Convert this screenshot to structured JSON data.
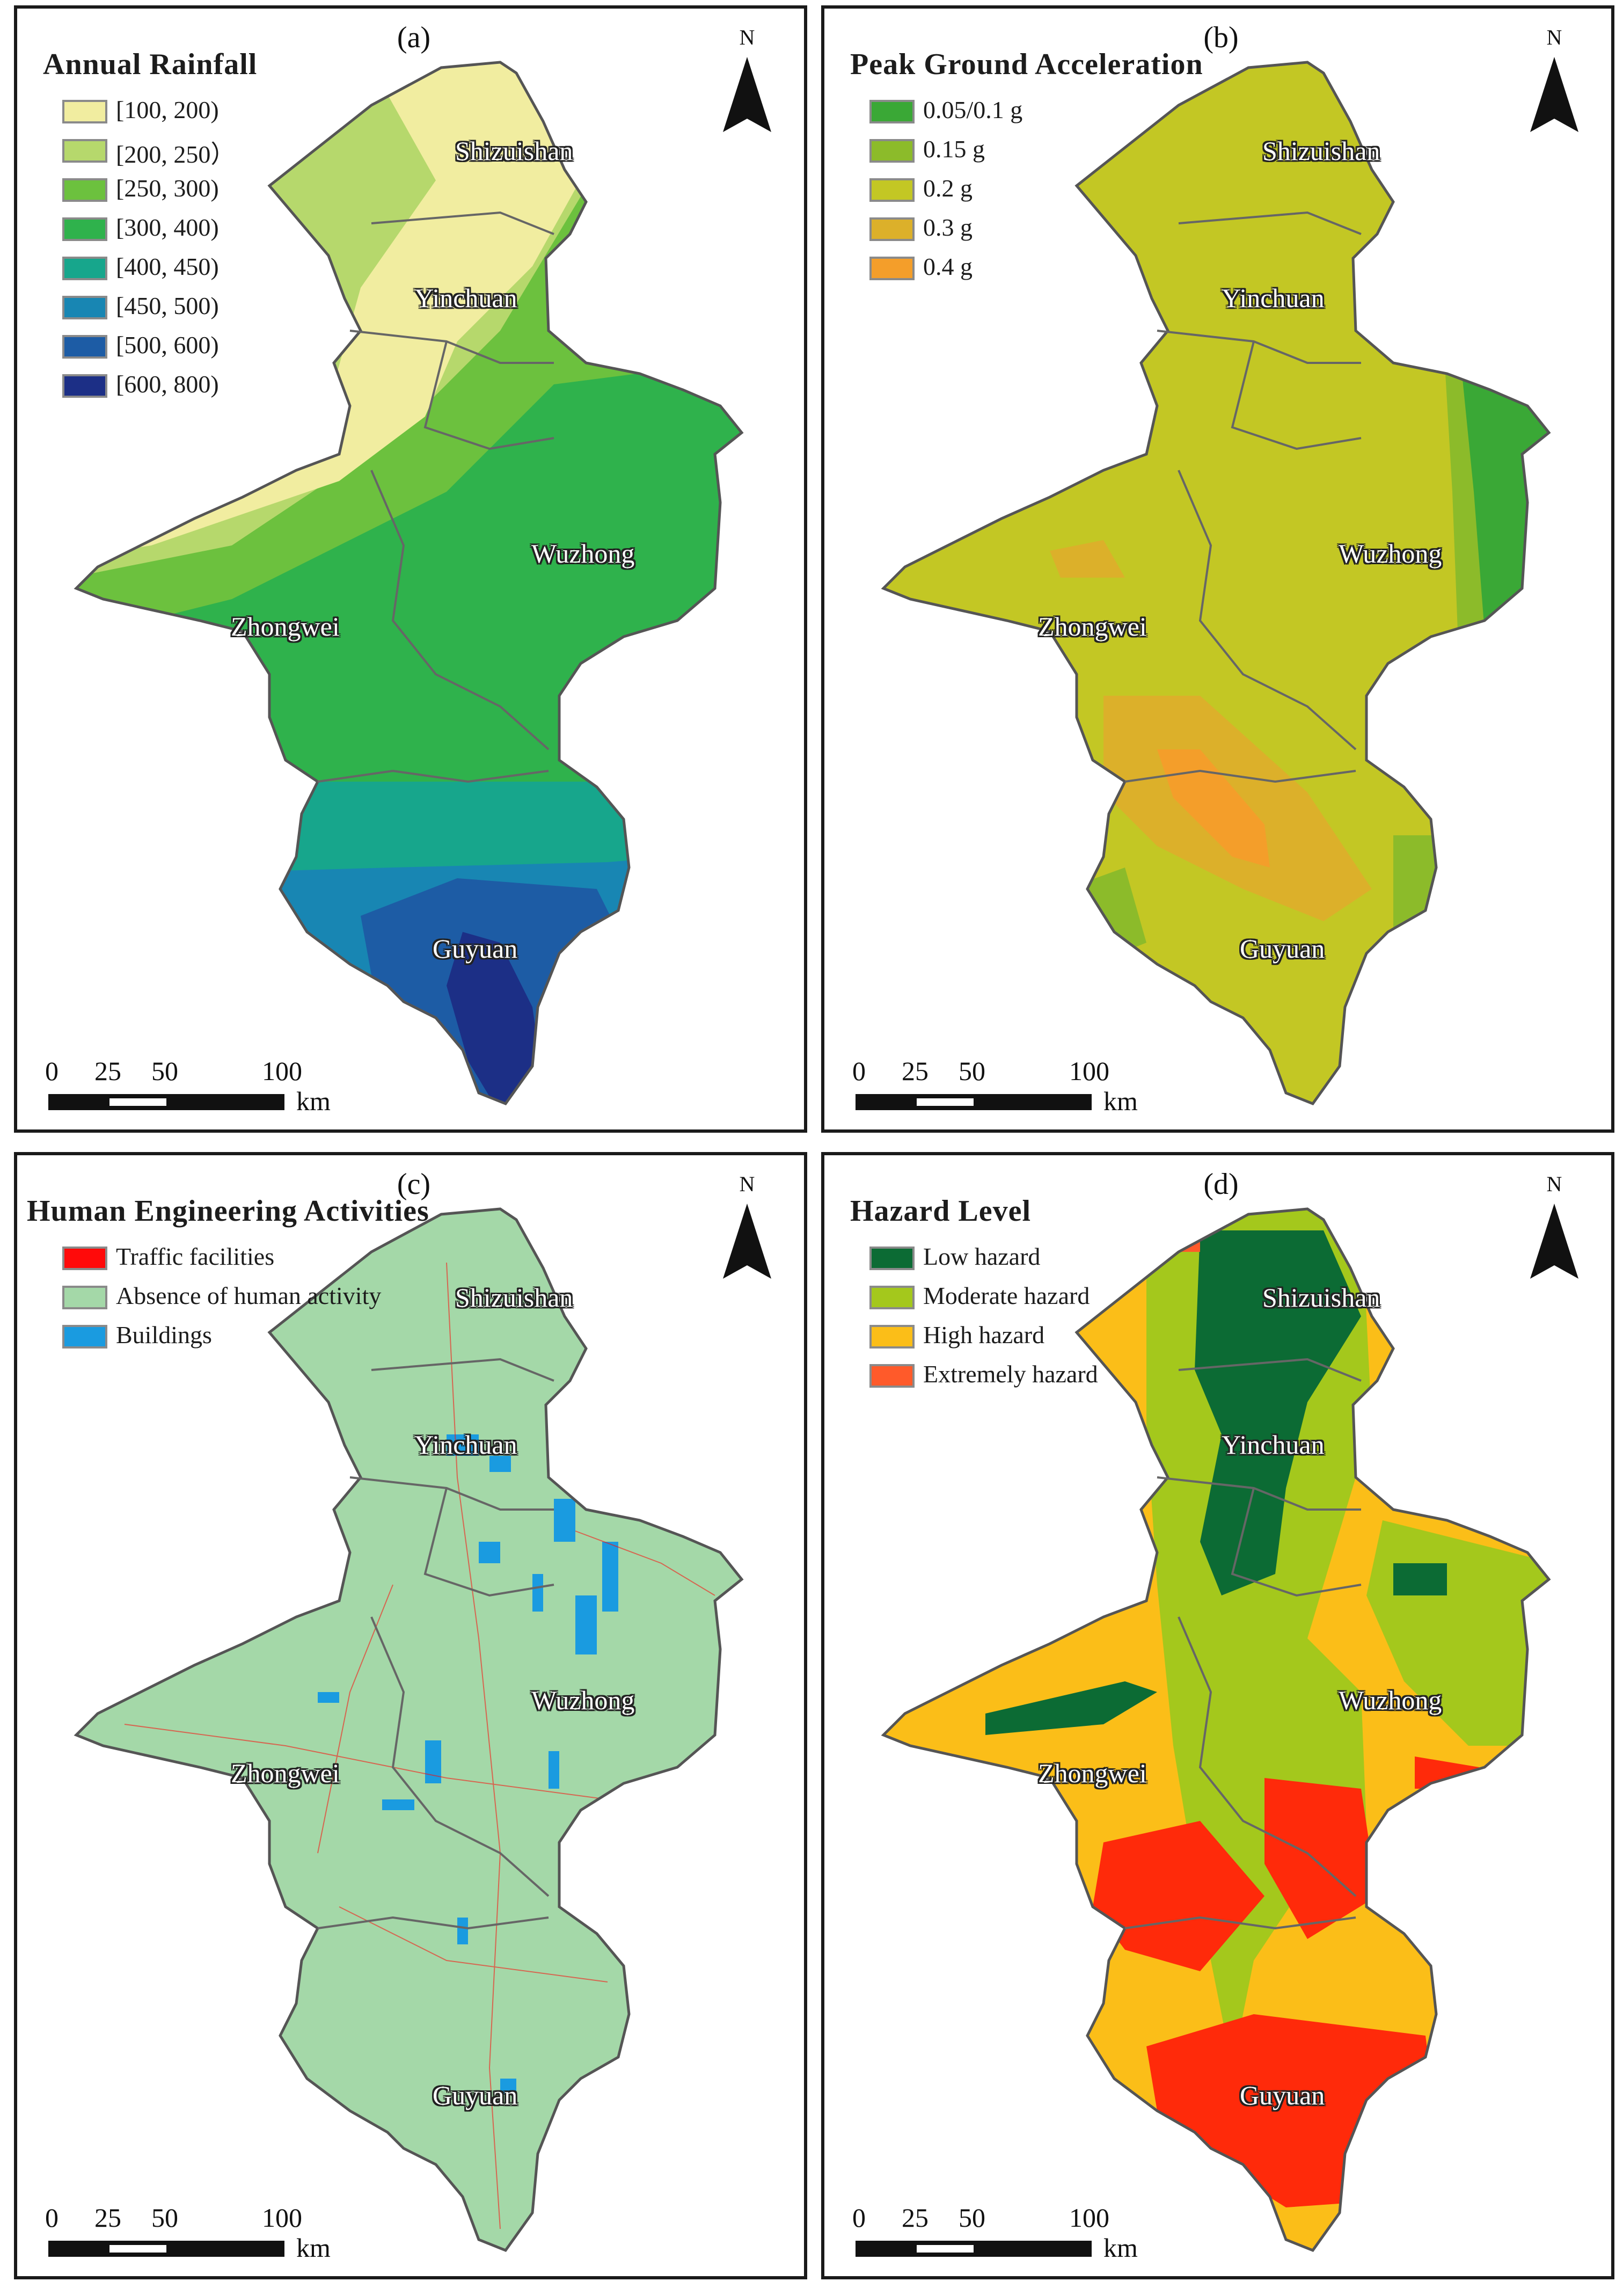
{
  "panels": [
    {
      "id": "a",
      "label": "(a)",
      "legend_title": "Annual Rainfall",
      "legend": [
        {
          "label": "[100, 200)",
          "color": "#f1eda0"
        },
        {
          "label": "[200, 250）",
          "color": "#b6d86c"
        },
        {
          "label": "[250, 300)",
          "color": "#6cc13e"
        },
        {
          "label": "[300, 400)",
          "color": "#2fb24c"
        },
        {
          "label": "[400, 450)",
          "color": "#17a68c"
        },
        {
          "label": "[450, 500)",
          "color": "#1886b3"
        },
        {
          "label": "[500, 600)",
          "color": "#1d5ca5"
        },
        {
          "label": "[600, 800)",
          "color": "#1c2f86"
        }
      ]
    },
    {
      "id": "b",
      "label": "(b)",
      "legend_title": "Peak Ground Acceleration",
      "legend": [
        {
          "label": "0.05/0.1 g",
          "color": "#3aa836"
        },
        {
          "label": "0.15 g",
          "color": "#8cbb2a"
        },
        {
          "label": "0.2 g",
          "color": "#c3c724"
        },
        {
          "label": "0.3 g",
          "color": "#dcb02a"
        },
        {
          "label": "0.4 g",
          "color": "#f49e2a"
        }
      ]
    },
    {
      "id": "c",
      "label": "(c)",
      "legend_title": "Human Engineering Activities",
      "legend": [
        {
          "label": "Traffic facilities",
          "color": "#ff0a0a"
        },
        {
          "label": "Absence of human activity",
          "color": "#a4d8a8"
        },
        {
          "label": "Buildings",
          "color": "#1a9be0"
        }
      ]
    },
    {
      "id": "d",
      "label": "(d)",
      "legend_title": "Hazard Level",
      "legend": [
        {
          "label": "Low hazard",
          "color": "#0c6b34"
        },
        {
          "label": "Moderate hazard",
          "color": "#a4c81c"
        },
        {
          "label": "High hazard",
          "color": "#fbbe18"
        },
        {
          "label": "Extremely hazard",
          "color": "#ff5a2a"
        }
      ]
    }
  ],
  "cities": [
    "Shizuishan",
    "Yinchuan",
    "Wuzhong",
    "Zhongwei",
    "Guyuan"
  ],
  "north_label": "N",
  "scale": {
    "ticks": [
      "0",
      "25",
      "50",
      "100"
    ],
    "unit": "km"
  }
}
